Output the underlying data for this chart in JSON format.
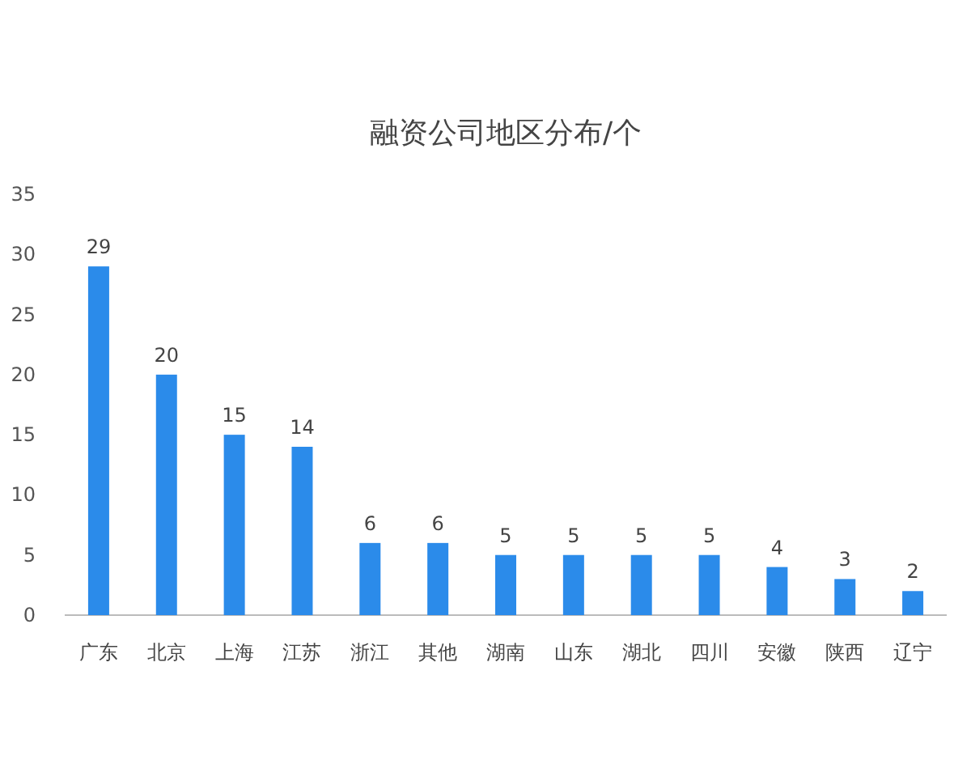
{
  "chart_data": {
    "type": "bar",
    "title": "融资公司地区分布/个",
    "categories": [
      "广东",
      "北京",
      "上海",
      "江苏",
      "浙江",
      "其他",
      "湖南",
      "山东",
      "湖北",
      "四川",
      "安徽",
      "陕西",
      "辽宁"
    ],
    "values": [
      29,
      20,
      15,
      14,
      6,
      6,
      5,
      5,
      5,
      5,
      4,
      3,
      2
    ],
    "color": "#2b8bea",
    "ylim": [
      0,
      35
    ],
    "yticks": [
      0,
      5,
      10,
      15,
      20,
      25,
      30,
      35
    ],
    "data_labels": true
  }
}
